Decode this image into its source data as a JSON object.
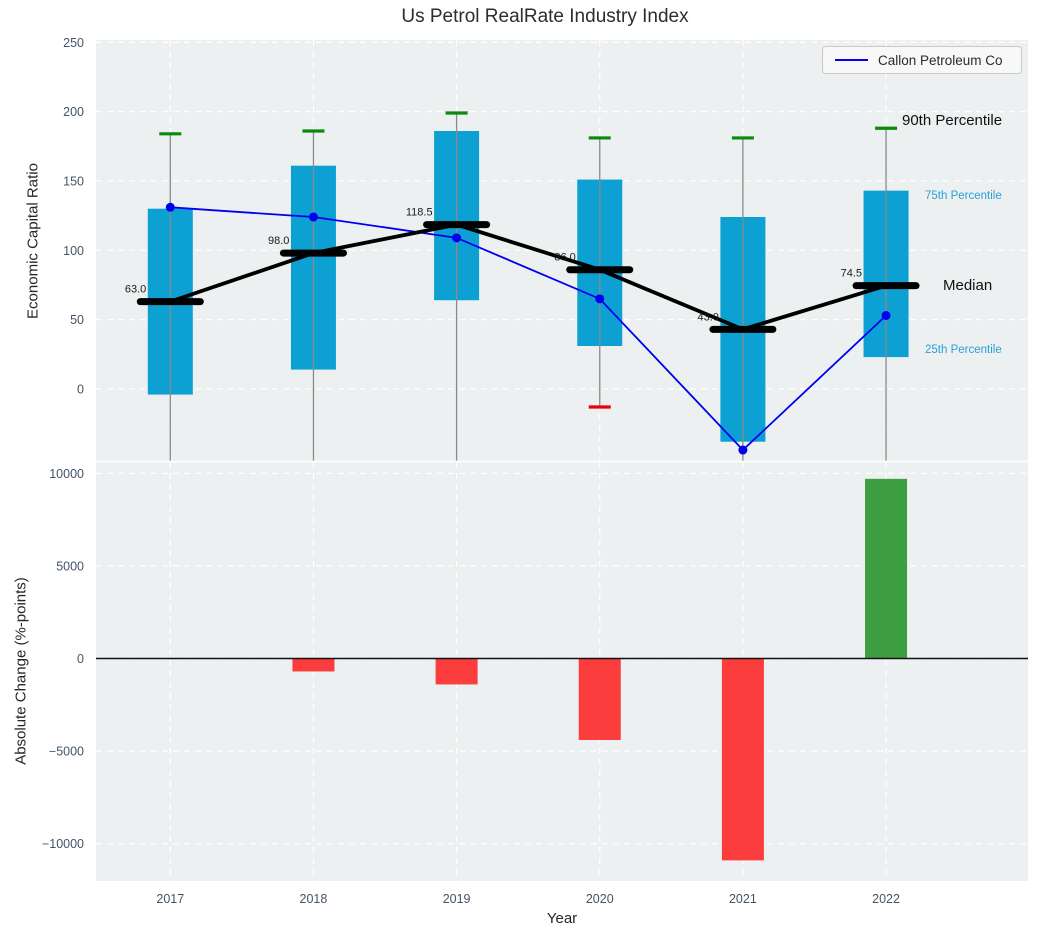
{
  "page_title": "Us Petrol RealRate Industry Index",
  "axes": {
    "top_ylabel": "Economic Capital Ratio",
    "bottom_ylabel": "Absolute Change (%-points)",
    "xlabel": "Year"
  },
  "legend": {
    "label": "Callon Petroleum Co"
  },
  "annotations": {
    "p90": "90th Percentile",
    "p75": "75th Percentile",
    "median": "Median",
    "p25": "25th Percentile"
  },
  "colors": {
    "plot_bg": "#ecf0f1",
    "grid": "#ffffff",
    "box_fill": "#0da0d2",
    "whisker": "#8a8a8a",
    "cap_high": "#0a8a0a",
    "cap_low": "#e8000b",
    "median_line": "#000000",
    "company_line": "#0000f0",
    "bar_negative": "#fb3d3d",
    "bar_positive": "#3d9e42",
    "tick_label": "#425468",
    "annotation_blue": "#2b9fd8"
  },
  "chart_data": [
    {
      "type": "boxplot",
      "title": "Us Petrol RealRate Industry Index",
      "ylabel": "Economic Capital Ratio",
      "categories": [
        "2017",
        "2018",
        "2019",
        "2020",
        "2021",
        "2022"
      ],
      "yticks": [
        0,
        50,
        100,
        150,
        200,
        250
      ],
      "ylim": [
        -52,
        252
      ],
      "grid": true,
      "legend_position": "upper right",
      "boxes": [
        {
          "year": "2017",
          "p90": 184,
          "p75": 130,
          "median": 63.0,
          "p25": -4,
          "p10": null
        },
        {
          "year": "2018",
          "p90": 186,
          "p75": 161,
          "median": 98.0,
          "p25": 14,
          "p10": null
        },
        {
          "year": "2019",
          "p90": 199,
          "p75": 186,
          "median": 118.5,
          "p25": 64,
          "p10": null
        },
        {
          "year": "2020",
          "p90": 181,
          "p75": 151,
          "median": 86.0,
          "p25": 31,
          "p10": -13
        },
        {
          "year": "2021",
          "p90": 181,
          "p75": 124,
          "median": 43.0,
          "p25": -38,
          "p10": null
        },
        {
          "year": "2022",
          "p90": 188,
          "p75": 143,
          "median": 74.5,
          "p25": 23,
          "p10": null
        }
      ],
      "median_labels": [
        "63.0",
        "98.0",
        "118.5",
        "86.0",
        "43.0",
        "74.5"
      ],
      "series": [
        {
          "name": "Callon Petroleum Co",
          "values": [
            131,
            124,
            109,
            65,
            -44,
            53
          ]
        }
      ]
    },
    {
      "type": "bar",
      "ylabel": "Absolute Change (%-points)",
      "xlabel": "Year",
      "categories": [
        "2017",
        "2018",
        "2019",
        "2020",
        "2021",
        "2022"
      ],
      "values": [
        null,
        -700,
        -1400,
        -4400,
        -10900,
        9700
      ],
      "yticks": [
        -10000,
        -5000,
        0,
        5000,
        10000
      ],
      "ylim": [
        -12000,
        10600
      ],
      "grid": true
    }
  ]
}
